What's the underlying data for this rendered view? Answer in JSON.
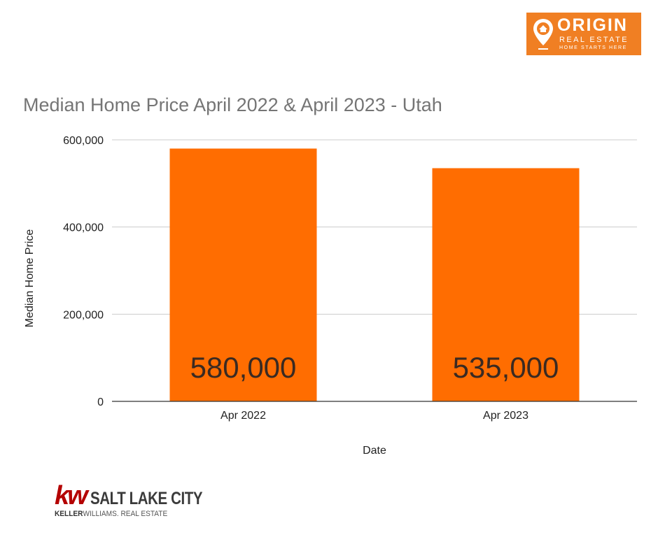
{
  "logos": {
    "origin": {
      "brand": "ORIGIN",
      "line2": "REAL ESTATE",
      "line3": "HOME STARTS HERE",
      "color": "#f07f23"
    },
    "kw": {
      "mark": "kw",
      "city": "SALT LAKE CITY",
      "sub_bold": "KELLER",
      "sub_rest": "WILLIAMS. REAL ESTATE",
      "mark_color": "#b40101"
    }
  },
  "chart_data": {
    "type": "bar",
    "title": "Median Home Price April 2022 & April 2023 - Utah",
    "xlabel": "Date",
    "ylabel": "Median Home Price",
    "categories": [
      "Apr 2022",
      "Apr 2023"
    ],
    "values": [
      580000,
      535000
    ],
    "data_labels": [
      "580,000",
      "535,000"
    ],
    "ylim": [
      0,
      600000
    ],
    "yticks": [
      0,
      200000,
      400000,
      600000
    ],
    "ytick_labels": [
      "0",
      "200,000",
      "400,000",
      "600,000"
    ],
    "bar_color": "#ff6d01",
    "grid": true,
    "legend": "none"
  }
}
